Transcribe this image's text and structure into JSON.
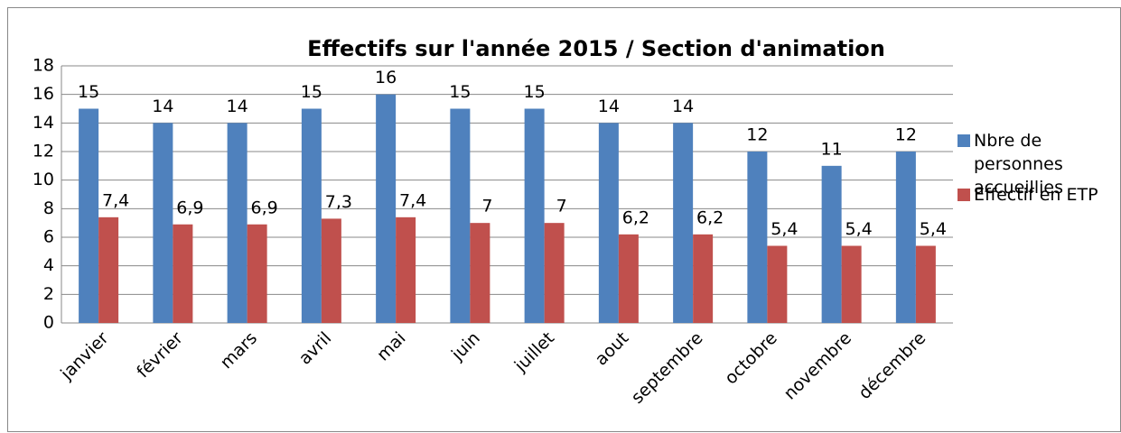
{
  "chart_data": {
    "type": "bar",
    "title": "Effectifs sur l'année 2015 / Section d'animation",
    "categories": [
      "janvier",
      "février",
      "mars",
      "avril",
      "mai",
      "juin",
      "juillet",
      "aout",
      "septembre",
      "octobre",
      "novembre",
      "décembre"
    ],
    "series": [
      {
        "name": "Nbre de personnes accueillies",
        "color": "#4f81bd",
        "values": [
          15,
          14,
          14,
          15,
          16,
          15,
          15,
          14,
          14,
          12,
          11,
          12
        ]
      },
      {
        "name": "Effectif en ETP",
        "color": "#c0504d",
        "values": [
          7.4,
          6.9,
          6.9,
          7.3,
          7.4,
          7,
          7,
          6.2,
          6.2,
          5.4,
          5.4,
          5.4
        ],
        "value_labels": [
          "7,4",
          "6,9",
          "6,9",
          "7,3",
          "7,4",
          "7",
          "7",
          "6,2",
          "6,2",
          "5,4",
          "5,4",
          "5,4"
        ]
      }
    ],
    "ylim": [
      0,
      18
    ],
    "yticks": [
      0,
      2,
      4,
      6,
      8,
      10,
      12,
      14,
      16,
      18
    ],
    "grid": true,
    "legend": "right"
  }
}
